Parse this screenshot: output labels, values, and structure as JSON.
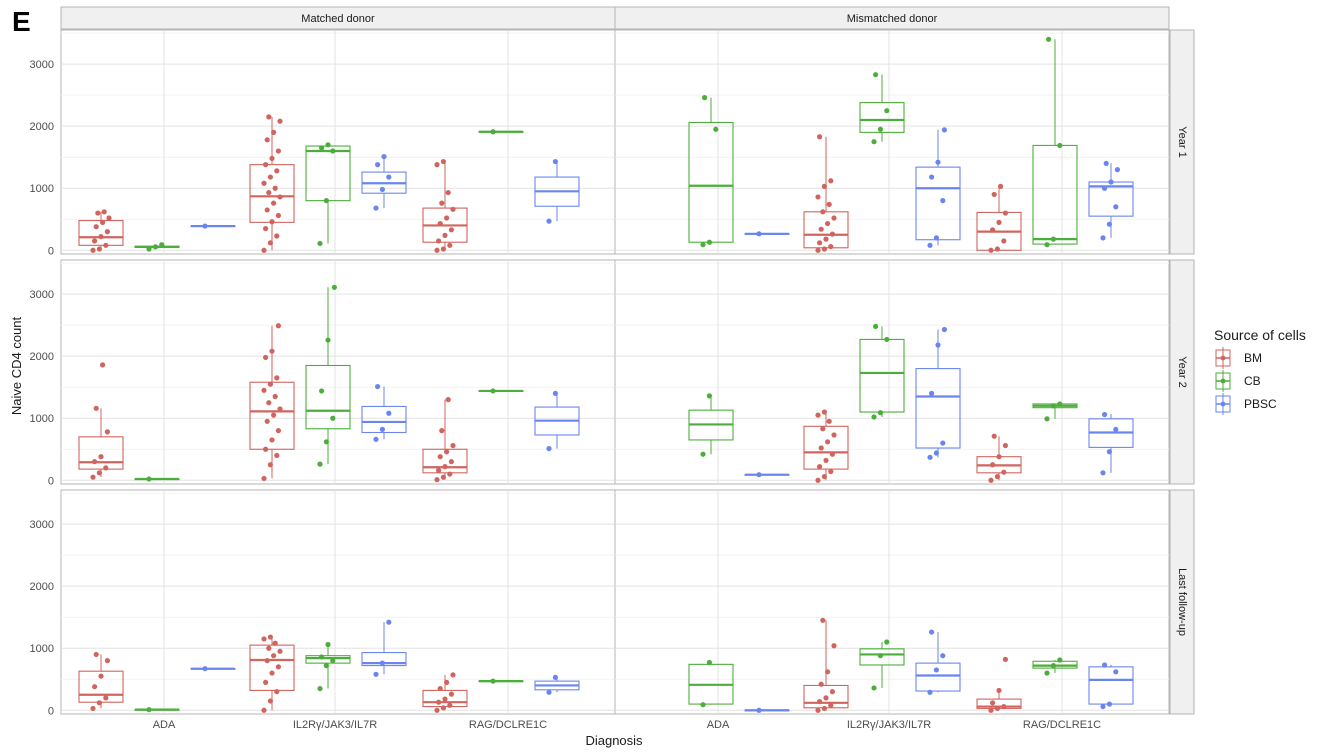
{
  "figure": {
    "panel_letter": "E"
  },
  "chart_data": {
    "type": "box",
    "xlabel": "Diagnosis",
    "ylabel": "Naive CD4 count",
    "categories": [
      "ADA",
      "IL2Rγ/JAK3/IL7R",
      "RAG/DCLRE1C"
    ],
    "ylim": [
      -60,
      3550
    ],
    "yticks": [
      0,
      1000,
      2000,
      3000
    ],
    "grid": true,
    "legend": {
      "title": "Source of cells",
      "position": "right",
      "entries": [
        {
          "name": "BM",
          "color": "#d0645e"
        },
        {
          "name": "CB",
          "color": "#4cae3a"
        },
        {
          "name": "PBSC",
          "color": "#6a86ee"
        }
      ]
    },
    "facet_columns": [
      "Matched donor",
      "Mismatched donor"
    ],
    "facet_rows": [
      "Year 1",
      "Year 2",
      "Last follow-up"
    ],
    "panels": [
      {
        "row": 0,
        "col": 0,
        "boxes": [
          {
            "cat": 0,
            "group": "BM",
            "q1": 80,
            "median": 210,
            "q3": 480,
            "min": 0,
            "max": 620,
            "points": [
              0,
              20,
              80,
              150,
              220,
              300,
              380,
              450,
              520,
              600,
              620
            ]
          },
          {
            "cat": 0,
            "group": "CB",
            "q1": 45,
            "median": 55,
            "q3": 65,
            "min": 20,
            "max": 90,
            "points": [
              20,
              55,
              90
            ]
          },
          {
            "cat": 0,
            "group": "PBSC",
            "q1": 390,
            "median": 390,
            "q3": 390,
            "min": 390,
            "max": 390,
            "points": [
              390
            ]
          },
          {
            "cat": 1,
            "group": "BM",
            "q1": 450,
            "median": 870,
            "q3": 1380,
            "min": 0,
            "max": 2150,
            "points": [
              0,
              120,
              230,
              350,
              460,
              560,
              650,
              760,
              860,
              930,
              1000,
              1080,
              1180,
              1280,
              1380,
              1480,
              1600,
              1780,
              1900,
              2080,
              2150
            ]
          },
          {
            "cat": 1,
            "group": "CB",
            "q1": 800,
            "median": 1600,
            "q3": 1680,
            "min": 110,
            "max": 1700,
            "points": [
              110,
              800,
              1600,
              1650,
              1700
            ]
          },
          {
            "cat": 1,
            "group": "PBSC",
            "q1": 920,
            "median": 1080,
            "q3": 1260,
            "min": 680,
            "max": 1510,
            "points": [
              680,
              980,
              1180,
              1380,
              1510
            ]
          },
          {
            "cat": 2,
            "group": "BM",
            "q1": 130,
            "median": 400,
            "q3": 680,
            "min": 0,
            "max": 1430,
            "points": [
              0,
              20,
              80,
              150,
              240,
              330,
              430,
              520,
              660,
              760,
              930,
              1380,
              1430
            ]
          },
          {
            "cat": 2,
            "group": "CB",
            "q1": 1910,
            "median": 1910,
            "q3": 1910,
            "min": 1910,
            "max": 1910,
            "points": [
              1910
            ]
          },
          {
            "cat": 2,
            "group": "PBSC",
            "q1": 710,
            "median": 950,
            "q3": 1180,
            "min": 470,
            "max": 1430,
            "points": [
              470,
              1430
            ]
          }
        ]
      },
      {
        "row": 0,
        "col": 1,
        "boxes": [
          {
            "cat": 0,
            "group": "CB",
            "q1": 130,
            "median": 1040,
            "q3": 2060,
            "min": 90,
            "max": 2460,
            "points": [
              90,
              130,
              1950,
              2460
            ]
          },
          {
            "cat": 0,
            "group": "PBSC",
            "q1": 265,
            "median": 265,
            "q3": 265,
            "min": 265,
            "max": 265,
            "points": [
              265
            ]
          },
          {
            "cat": 1,
            "group": "BM",
            "q1": 40,
            "median": 250,
            "q3": 620,
            "min": 0,
            "max": 1830,
            "points": [
              0,
              20,
              60,
              120,
              180,
              260,
              340,
              430,
              520,
              620,
              740,
              860,
              1030,
              1120,
              1830
            ]
          },
          {
            "cat": 1,
            "group": "CB",
            "q1": 1900,
            "median": 2100,
            "q3": 2380,
            "min": 1750,
            "max": 2830,
            "points": [
              1750,
              1950,
              2250,
              2830
            ]
          },
          {
            "cat": 1,
            "group": "PBSC",
            "q1": 170,
            "median": 1000,
            "q3": 1340,
            "min": 80,
            "max": 1940,
            "points": [
              80,
              200,
              800,
              1180,
              1420,
              1940
            ]
          },
          {
            "cat": 2,
            "group": "BM",
            "q1": 0,
            "median": 300,
            "q3": 610,
            "min": 0,
            "max": 1030,
            "points": [
              0,
              20,
              150,
              330,
              450,
              600,
              900,
              1030
            ]
          },
          {
            "cat": 2,
            "group": "CB",
            "q1": 100,
            "median": 180,
            "q3": 1690,
            "min": 90,
            "max": 3400,
            "points": [
              90,
              180,
              1690,
              3400
            ]
          },
          {
            "cat": 2,
            "group": "PBSC",
            "q1": 550,
            "median": 1030,
            "q3": 1100,
            "min": 200,
            "max": 1400,
            "points": [
              200,
              420,
              700,
              1000,
              1100,
              1300,
              1400
            ]
          }
        ]
      },
      {
        "row": 1,
        "col": 0,
        "boxes": [
          {
            "cat": 0,
            "group": "BM",
            "q1": 180,
            "median": 290,
            "q3": 700,
            "min": 50,
            "max": 1160,
            "points": [
              50,
              120,
              200,
              300,
              380,
              780,
              1160,
              1860
            ]
          },
          {
            "cat": 0,
            "group": "CB",
            "q1": 20,
            "median": 20,
            "q3": 20,
            "min": 20,
            "max": 20,
            "points": [
              20
            ]
          },
          {
            "cat": 1,
            "group": "BM",
            "q1": 500,
            "median": 1110,
            "q3": 1580,
            "min": 30,
            "max": 2490,
            "points": [
              30,
              250,
              400,
              500,
              650,
              800,
              950,
              1050,
              1150,
              1250,
              1350,
              1450,
              1550,
              1650,
              1980,
              2080,
              2490
            ]
          },
          {
            "cat": 1,
            "group": "CB",
            "q1": 830,
            "median": 1120,
            "q3": 1850,
            "min": 260,
            "max": 3110,
            "points": [
              260,
              620,
              1000,
              1440,
              2260,
              3110
            ]
          },
          {
            "cat": 1,
            "group": "PBSC",
            "q1": 770,
            "median": 940,
            "q3": 1190,
            "min": 660,
            "max": 1510,
            "points": [
              660,
              820,
              1080,
              1510
            ]
          },
          {
            "cat": 2,
            "group": "BM",
            "q1": 120,
            "median": 210,
            "q3": 500,
            "min": 10,
            "max": 1300,
            "points": [
              10,
              50,
              100,
              160,
              220,
              300,
              380,
              460,
              560,
              800,
              1300
            ]
          },
          {
            "cat": 2,
            "group": "CB",
            "q1": 1440,
            "median": 1440,
            "q3": 1440,
            "min": 1440,
            "max": 1440,
            "points": [
              1440
            ]
          },
          {
            "cat": 2,
            "group": "PBSC",
            "q1": 730,
            "median": 960,
            "q3": 1180,
            "min": 510,
            "max": 1400,
            "points": [
              510,
              1400
            ]
          }
        ]
      },
      {
        "row": 1,
        "col": 1,
        "boxes": [
          {
            "cat": 0,
            "group": "CB",
            "q1": 650,
            "median": 900,
            "q3": 1130,
            "min": 420,
            "max": 1360,
            "points": [
              420,
              1360
            ]
          },
          {
            "cat": 0,
            "group": "PBSC",
            "q1": 90,
            "median": 90,
            "q3": 90,
            "min": 90,
            "max": 90,
            "points": [
              90
            ]
          },
          {
            "cat": 1,
            "group": "BM",
            "q1": 180,
            "median": 450,
            "q3": 870,
            "min": 0,
            "max": 1100,
            "points": [
              0,
              60,
              140,
              220,
              320,
              420,
              520,
              620,
              730,
              830,
              950,
              1050,
              1100
            ]
          },
          {
            "cat": 1,
            "group": "CB",
            "q1": 1100,
            "median": 1730,
            "q3": 2270,
            "min": 1020,
            "max": 2480,
            "points": [
              1020,
              1090,
              2270,
              2480
            ]
          },
          {
            "cat": 1,
            "group": "PBSC",
            "q1": 520,
            "median": 1350,
            "q3": 1800,
            "min": 370,
            "max": 2430,
            "points": [
              370,
              440,
              600,
              1400,
              2180,
              2430
            ]
          },
          {
            "cat": 2,
            "group": "BM",
            "q1": 120,
            "median": 240,
            "q3": 380,
            "min": 0,
            "max": 710,
            "points": [
              0,
              60,
              130,
              250,
              380,
              560,
              710
            ]
          },
          {
            "cat": 2,
            "group": "CB",
            "q1": 1170,
            "median": 1200,
            "q3": 1230,
            "min": 990,
            "max": 1230,
            "points": [
              990,
              1200,
              1230
            ]
          },
          {
            "cat": 2,
            "group": "PBSC",
            "q1": 530,
            "median": 770,
            "q3": 990,
            "min": 120,
            "max": 1070,
            "points": [
              120,
              460,
              820,
              1060
            ]
          }
        ]
      },
      {
        "row": 2,
        "col": 0,
        "boxes": [
          {
            "cat": 0,
            "group": "BM",
            "q1": 130,
            "median": 250,
            "q3": 630,
            "min": 30,
            "max": 900,
            "points": [
              30,
              120,
              200,
              380,
              550,
              800,
              900
            ]
          },
          {
            "cat": 0,
            "group": "CB",
            "q1": 10,
            "median": 10,
            "q3": 10,
            "min": 10,
            "max": 10,
            "points": [
              10
            ]
          },
          {
            "cat": 0,
            "group": "PBSC",
            "q1": 670,
            "median": 670,
            "q3": 670,
            "min": 670,
            "max": 670,
            "points": [
              670
            ]
          },
          {
            "cat": 1,
            "group": "BM",
            "q1": 320,
            "median": 810,
            "q3": 1050,
            "min": 0,
            "max": 1180,
            "points": [
              0,
              150,
              300,
              450,
              600,
              700,
              800,
              880,
              950,
              1000,
              1080,
              1150,
              1180
            ]
          },
          {
            "cat": 1,
            "group": "CB",
            "q1": 760,
            "median": 840,
            "q3": 880,
            "min": 350,
            "max": 1060,
            "points": [
              350,
              720,
              800,
              860,
              1060
            ]
          },
          {
            "cat": 1,
            "group": "PBSC",
            "q1": 720,
            "median": 760,
            "q3": 930,
            "min": 580,
            "max": 1420,
            "points": [
              580,
              760,
              1420
            ]
          },
          {
            "cat": 2,
            "group": "BM",
            "q1": 60,
            "median": 130,
            "q3": 320,
            "min": 0,
            "max": 570,
            "points": [
              0,
              40,
              80,
              130,
              180,
              260,
              350,
              450,
              570
            ]
          },
          {
            "cat": 2,
            "group": "CB",
            "q1": 470,
            "median": 470,
            "q3": 470,
            "min": 470,
            "max": 470,
            "points": [
              470
            ]
          },
          {
            "cat": 2,
            "group": "PBSC",
            "q1": 330,
            "median": 400,
            "q3": 470,
            "min": 290,
            "max": 530,
            "points": [
              290,
              530
            ]
          }
        ]
      },
      {
        "row": 2,
        "col": 1,
        "boxes": [
          {
            "cat": 0,
            "group": "CB",
            "q1": 100,
            "median": 410,
            "q3": 740,
            "min": 90,
            "max": 770,
            "points": [
              90,
              770
            ]
          },
          {
            "cat": 0,
            "group": "PBSC",
            "q1": 0,
            "median": 0,
            "q3": 0,
            "min": 0,
            "max": 0,
            "points": [
              0
            ]
          },
          {
            "cat": 1,
            "group": "BM",
            "q1": 40,
            "median": 120,
            "q3": 400,
            "min": 0,
            "max": 1450,
            "points": [
              0,
              30,
              80,
              140,
              200,
              300,
              420,
              620,
              1040,
              1450
            ]
          },
          {
            "cat": 1,
            "group": "CB",
            "q1": 730,
            "median": 900,
            "q3": 990,
            "min": 360,
            "max": 1100,
            "points": [
              360,
              880,
              1100
            ]
          },
          {
            "cat": 1,
            "group": "PBSC",
            "q1": 310,
            "median": 560,
            "q3": 760,
            "min": 290,
            "max": 1260,
            "points": [
              290,
              650,
              880,
              1260
            ]
          },
          {
            "cat": 2,
            "group": "BM",
            "q1": 30,
            "median": 60,
            "q3": 180,
            "min": 0,
            "max": 320,
            "points": [
              0,
              30,
              60,
              120,
              320,
              820
            ]
          },
          {
            "cat": 2,
            "group": "CB",
            "q1": 680,
            "median": 720,
            "q3": 790,
            "min": 600,
            "max": 810,
            "points": [
              600,
              720,
              810
            ]
          },
          {
            "cat": 2,
            "group": "PBSC",
            "q1": 100,
            "median": 490,
            "q3": 700,
            "min": 60,
            "max": 730,
            "points": [
              60,
              100,
              620,
              730
            ]
          }
        ]
      }
    ]
  }
}
